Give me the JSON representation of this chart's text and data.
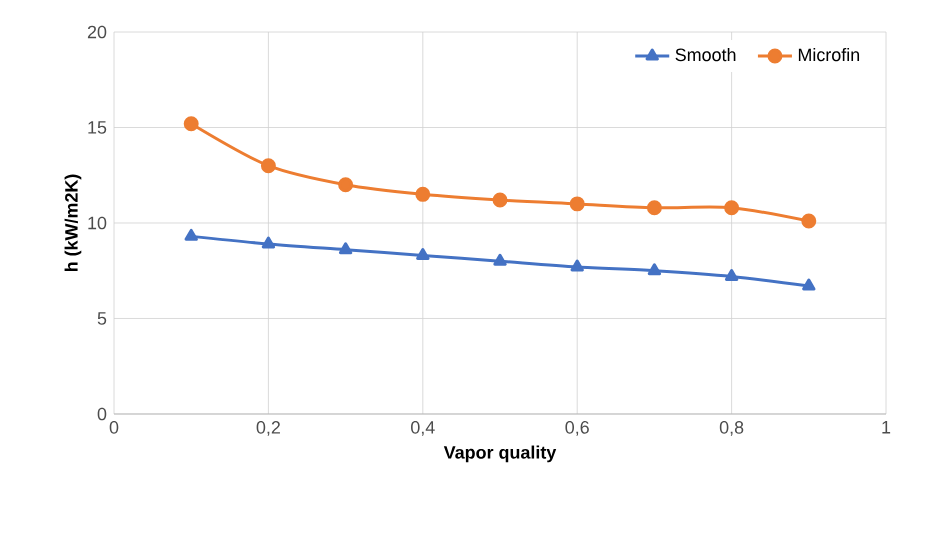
{
  "chart_data": {
    "type": "line",
    "xlabel": "Vapor quality",
    "ylabel": "h (kW/m2K)",
    "x": [
      0.1,
      0.2,
      0.3,
      0.4,
      0.5,
      0.6,
      0.7,
      0.8,
      0.9
    ],
    "series": [
      {
        "name": "Smooth",
        "color": "#4472c4",
        "marker": "triangle",
        "values": [
          9.3,
          8.9,
          8.6,
          8.3,
          8.0,
          7.7,
          7.5,
          7.2,
          6.7
        ]
      },
      {
        "name": "Microfin",
        "color": "#ed7d31",
        "marker": "circle",
        "values": [
          15.2,
          13.0,
          12.0,
          11.5,
          11.2,
          11.0,
          10.8,
          10.8,
          10.1
        ]
      }
    ],
    "xlim": [
      0,
      1
    ],
    "xticks": [
      0,
      {
        "value": 0.2,
        "label": "0,2"
      },
      {
        "value": 0.4,
        "label": "0,4"
      },
      {
        "value": 0.6,
        "label": "0,6"
      },
      {
        "value": 0.8,
        "label": "0,8"
      },
      1
    ],
    "ylim": [
      0,
      20
    ],
    "yticks": [
      0,
      5,
      10,
      15,
      20
    ],
    "grid": true,
    "legend": "top right"
  }
}
